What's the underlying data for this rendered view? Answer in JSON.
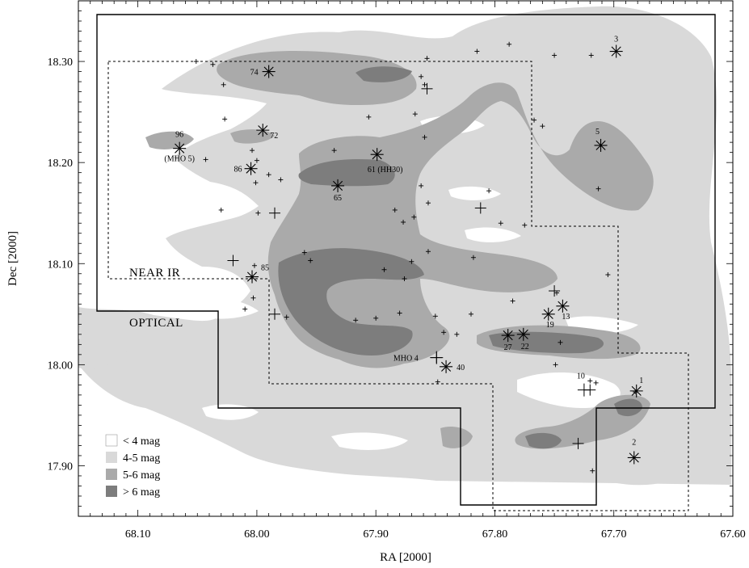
{
  "chart_data": {
    "type": "contour",
    "xlabel": "RA [2000]",
    "ylabel": "Dec [2000]",
    "xlim": [
      68.15,
      67.6
    ],
    "ylim": [
      17.85,
      18.36
    ],
    "x_ticks": [
      68.1,
      68.0,
      67.9,
      67.8,
      67.7,
      67.6
    ],
    "x_tick_labels": [
      "68.10",
      "68.00",
      "67.90",
      "67.80",
      "67.70",
      "67.60"
    ],
    "y_ticks": [
      17.9,
      18.0,
      18.1,
      18.2,
      18.3
    ],
    "y_tick_labels": [
      "17.90",
      "18.00",
      "18.10",
      "18.20",
      "18.30"
    ],
    "legend": {
      "placement": "bottom-left",
      "entries": [
        {
          "label": "< 4 mag",
          "color": "#ffffff"
        },
        {
          "label": "4-5 mag",
          "color": "#d9d9d9"
        },
        {
          "label": "5-6 mag",
          "color": "#aaaaaa"
        },
        {
          "label": "> 6 mag",
          "color": "#7d7d7d"
        }
      ]
    },
    "region_labels": [
      "NEAR IR",
      "OPTICAL"
    ],
    "sources": [
      {
        "label": "3",
        "ra": 67.698,
        "dec": 18.31
      },
      {
        "label": "74",
        "ra": 67.99,
        "dec": 18.29
      },
      {
        "label": "96",
        "ra": 68.065,
        "dec": 18.214
      },
      {
        "label": "(MHO 5)",
        "ra": 68.065,
        "dec": 18.214
      },
      {
        "label": "72",
        "ra": 67.995,
        "dec": 18.232
      },
      {
        "label": "86",
        "ra": 68.005,
        "dec": 18.194
      },
      {
        "label": "61 (HH30)",
        "ra": 67.899,
        "dec": 18.208
      },
      {
        "label": "65",
        "ra": 67.932,
        "dec": 18.177
      },
      {
        "label": "5",
        "ra": 67.711,
        "dec": 18.217
      },
      {
        "label": "85",
        "ra": 68.004,
        "dec": 18.087
      },
      {
        "label": "19",
        "ra": 67.755,
        "dec": 18.05
      },
      {
        "label": "13",
        "ra": 67.743,
        "dec": 18.058
      },
      {
        "label": "27",
        "ra": 67.789,
        "dec": 18.029
      },
      {
        "label": "22",
        "ra": 67.776,
        "dec": 18.03
      },
      {
        "label": "MHO 4",
        "ra": 67.849,
        "dec": 18.007
      },
      {
        "label": "40",
        "ra": 67.841,
        "dec": 17.998
      },
      {
        "label": "10",
        "ra": 67.725,
        "dec": 17.975
      },
      {
        "label": "1",
        "ra": 67.681,
        "dec": 17.974
      },
      {
        "label": "2",
        "ra": 67.683,
        "dec": 17.908
      }
    ]
  }
}
